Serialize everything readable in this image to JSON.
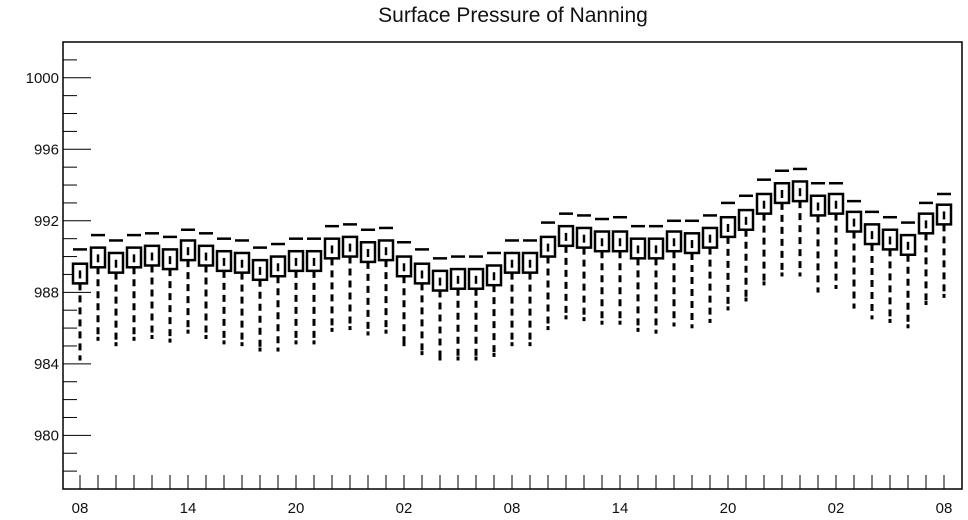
{
  "chart_data": {
    "type": "boxplot",
    "title": "Surface Pressure of Nanning",
    "xlabel": "",
    "ylabel": "",
    "ylim": [
      977,
      1002
    ],
    "yticks": [
      980,
      984,
      988,
      992,
      996,
      1000
    ],
    "ytick_labels": [
      "980",
      "984",
      "988",
      "992",
      "996",
      "1000"
    ],
    "x_tick_labels": [
      "08",
      "14",
      "20",
      "02",
      "08",
      "14",
      "20",
      "02",
      "08"
    ],
    "x_tick_indices": [
      0,
      6,
      12,
      18,
      24,
      30,
      36,
      42,
      48
    ],
    "grid": false,
    "series": [
      {
        "median": [
          989.0,
          989.9,
          989.6,
          989.9,
          990.0,
          989.8,
          990.3,
          990.0,
          989.7,
          989.6,
          989.2,
          989.4,
          989.7,
          989.7,
          990.4,
          990.5,
          990.2,
          990.3,
          989.4,
          989.0,
          988.6,
          988.7,
          988.7,
          988.9,
          989.6,
          989.6,
          990.5,
          991.1,
          991.0,
          990.8,
          990.8,
          990.4,
          990.4,
          990.8,
          990.7,
          991.0,
          991.6,
          992.0,
          992.9,
          993.5,
          993.6,
          992.8,
          992.9,
          991.9,
          991.2,
          990.9,
          990.6,
          991.8,
          992.3
        ],
        "q1": [
          988.5,
          989.4,
          989.1,
          989.4,
          989.5,
          989.3,
          989.8,
          989.5,
          989.2,
          989.1,
          988.7,
          988.9,
          989.2,
          989.2,
          989.9,
          990.0,
          989.7,
          989.8,
          988.9,
          988.5,
          988.1,
          988.2,
          988.2,
          988.4,
          989.1,
          989.1,
          990.0,
          990.6,
          990.5,
          990.3,
          990.3,
          989.9,
          989.9,
          990.3,
          990.2,
          990.5,
          991.1,
          991.5,
          992.4,
          993.0,
          993.1,
          992.3,
          992.4,
          991.4,
          990.7,
          990.4,
          990.1,
          991.3,
          991.8
        ],
        "q3": [
          989.6,
          990.5,
          990.2,
          990.5,
          990.6,
          990.4,
          990.9,
          990.6,
          990.3,
          990.2,
          989.8,
          990.0,
          990.3,
          990.3,
          991.0,
          991.1,
          990.8,
          990.9,
          990.0,
          989.6,
          989.2,
          989.3,
          989.3,
          989.5,
          990.2,
          990.2,
          991.1,
          991.7,
          991.6,
          991.4,
          991.4,
          991.0,
          991.0,
          991.4,
          991.3,
          991.6,
          992.2,
          992.6,
          993.5,
          994.1,
          994.2,
          993.4,
          993.5,
          992.5,
          991.8,
          991.5,
          991.2,
          992.4,
          992.9
        ],
        "low": [
          984.3,
          985.4,
          985.1,
          985.4,
          985.5,
          985.3,
          985.8,
          985.5,
          985.2,
          985.1,
          984.8,
          984.8,
          985.2,
          985.2,
          985.9,
          986.0,
          985.7,
          985.8,
          985.1,
          984.6,
          984.3,
          984.3,
          984.3,
          984.5,
          985.1,
          985.1,
          986.0,
          986.6,
          986.5,
          986.3,
          986.3,
          985.9,
          985.8,
          986.2,
          986.1,
          986.4,
          987.1,
          987.6,
          988.5,
          989.0,
          989.0,
          988.1,
          988.3,
          987.2,
          986.6,
          986.4,
          986.1,
          987.4,
          987.8
        ],
        "high": [
          990.4,
          991.2,
          990.9,
          991.2,
          991.3,
          991.1,
          991.5,
          991.3,
          991.0,
          990.9,
          990.5,
          990.7,
          991.0,
          991.0,
          991.7,
          991.8,
          991.5,
          991.6,
          990.8,
          990.4,
          989.9,
          990.0,
          990.0,
          990.2,
          990.9,
          990.9,
          991.9,
          992.4,
          992.3,
          992.1,
          992.2,
          991.7,
          991.7,
          992.0,
          992.0,
          992.3,
          993.0,
          993.4,
          994.3,
          994.8,
          994.9,
          994.1,
          994.1,
          993.1,
          992.5,
          992.2,
          991.9,
          993.0,
          993.5
        ]
      }
    ]
  }
}
